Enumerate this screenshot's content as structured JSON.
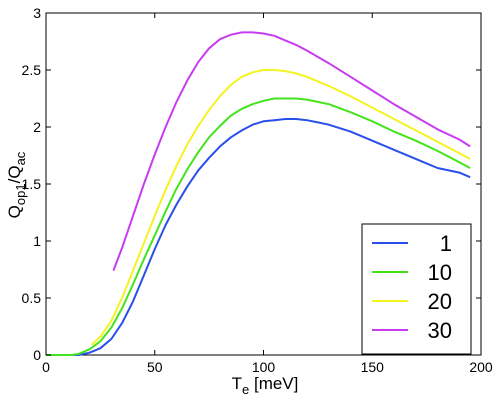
{
  "chart_data": {
    "type": "line",
    "title": "",
    "xlabel": {
      "main": "T",
      "sub": "e",
      "rest": " [meV]"
    },
    "ylabel": {
      "q1": "Q",
      "s1": "op1",
      "slash": "/",
      "q2": "Q",
      "s2": "ac"
    },
    "xlim": [
      0,
      200
    ],
    "ylim": [
      0,
      3
    ],
    "xticks": [
      "0",
      "50",
      "100",
      "150",
      "200"
    ],
    "yticks": [
      "0",
      "0.5",
      "1",
      "1.5",
      "2",
      "2.5",
      "3"
    ],
    "xtick_values": [
      0,
      50,
      100,
      150,
      200
    ],
    "ytick_values": [
      0,
      0.5,
      1,
      1.5,
      2,
      2.5,
      3
    ],
    "grid": false,
    "legend_position": "bottom-right",
    "series": [
      {
        "name": "1",
        "color": "#2a4fe8",
        "x": [
          0,
          15,
          20,
          25,
          30,
          35,
          40,
          45,
          50,
          55,
          60,
          65,
          70,
          75,
          80,
          85,
          90,
          95,
          100,
          105,
          110,
          115,
          120,
          125,
          130,
          140,
          150,
          160,
          170,
          180,
          190,
          195
        ],
        "y": [
          0,
          0.0,
          0.02,
          0.06,
          0.14,
          0.28,
          0.47,
          0.7,
          0.93,
          1.14,
          1.32,
          1.48,
          1.62,
          1.73,
          1.83,
          1.91,
          1.97,
          2.02,
          2.05,
          2.06,
          2.07,
          2.07,
          2.06,
          2.04,
          2.02,
          1.96,
          1.88,
          1.8,
          1.72,
          1.64,
          1.6,
          1.56
        ]
      },
      {
        "name": "10",
        "color": "#44e31c",
        "x": [
          0,
          12,
          15,
          20,
          25,
          30,
          35,
          40,
          45,
          50,
          55,
          60,
          65,
          70,
          75,
          80,
          85,
          90,
          95,
          100,
          105,
          110,
          115,
          120,
          125,
          130,
          140,
          150,
          160,
          170,
          180,
          190,
          195
        ],
        "y": [
          0,
          0.0,
          0.01,
          0.05,
          0.12,
          0.24,
          0.41,
          0.62,
          0.84,
          1.05,
          1.26,
          1.46,
          1.63,
          1.78,
          1.91,
          2.01,
          2.1,
          2.16,
          2.2,
          2.23,
          2.25,
          2.25,
          2.25,
          2.24,
          2.22,
          2.2,
          2.13,
          2.05,
          1.96,
          1.88,
          1.79,
          1.69,
          1.64
        ]
      },
      {
        "name": "20",
        "color": "#f3f320",
        "x": [
          21,
          25,
          30,
          35,
          40,
          45,
          50,
          55,
          60,
          65,
          70,
          75,
          80,
          85,
          90,
          95,
          100,
          105,
          110,
          115,
          120,
          125,
          130,
          140,
          150,
          160,
          170,
          180,
          190,
          195
        ],
        "y": [
          0.09,
          0.16,
          0.3,
          0.5,
          0.74,
          0.98,
          1.22,
          1.45,
          1.66,
          1.85,
          2.01,
          2.15,
          2.27,
          2.37,
          2.44,
          2.48,
          2.5,
          2.5,
          2.49,
          2.47,
          2.44,
          2.4,
          2.36,
          2.27,
          2.17,
          2.07,
          1.97,
          1.87,
          1.77,
          1.72
        ]
      },
      {
        "name": "30",
        "color": "#c83cf0",
        "x": [
          31,
          35,
          40,
          45,
          50,
          55,
          60,
          65,
          70,
          75,
          80,
          85,
          90,
          95,
          100,
          105,
          110,
          115,
          120,
          130,
          140,
          150,
          160,
          170,
          180,
          190,
          195
        ],
        "y": [
          0.74,
          0.94,
          1.22,
          1.5,
          1.76,
          2.0,
          2.22,
          2.41,
          2.57,
          2.69,
          2.77,
          2.81,
          2.83,
          2.83,
          2.82,
          2.8,
          2.76,
          2.72,
          2.67,
          2.56,
          2.44,
          2.32,
          2.2,
          2.09,
          1.98,
          1.89,
          1.83
        ]
      }
    ]
  }
}
